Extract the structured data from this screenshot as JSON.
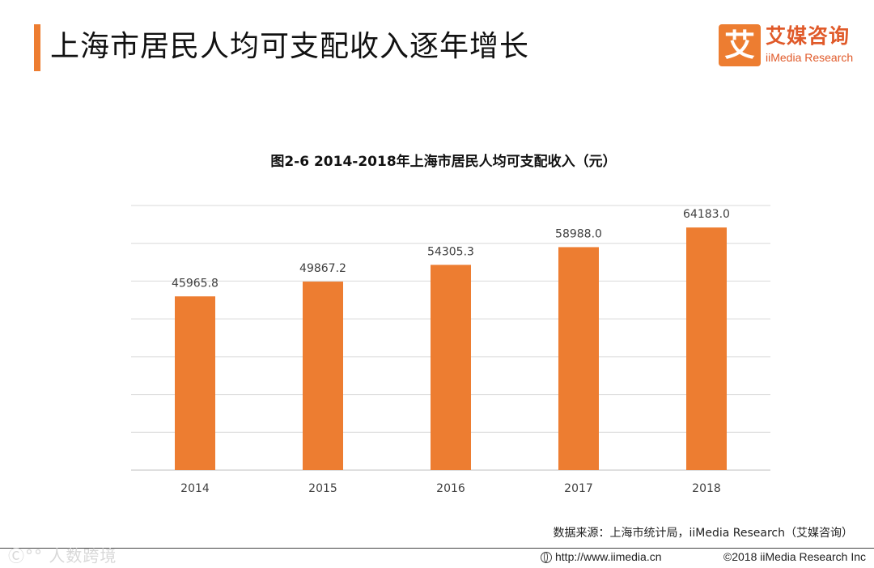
{
  "header": {
    "title": "上海市居民人均可支配收入逐年增长",
    "accent_color": "#ED7D31"
  },
  "logo": {
    "mark": "艾",
    "name_cn": "艾媒咨询",
    "name_en": "iiMedia Research"
  },
  "chart_data": {
    "type": "bar",
    "title": "图2-6 2014-2018年上海市居民人均可支配收入（元）",
    "categories": [
      "2014",
      "2015",
      "2016",
      "2017",
      "2018"
    ],
    "values": [
      45965.8,
      49867.2,
      54305.3,
      58988.0,
      64183.0
    ],
    "value_labels": [
      "45965.8",
      "49867.2",
      "54305.3",
      "58988.0",
      "64183.0"
    ],
    "ylim": [
      0,
      70000
    ],
    "y_gridline_step": 10000,
    "y_ticks_visible": false,
    "grid": true,
    "bar_color": "#ED7D31",
    "xlabel": "",
    "ylabel": ""
  },
  "source": "数据来源：上海市统计局，iiMedia Research（艾媒咨询）",
  "footer": {
    "watermark": "Ⓒ°° 人数跨境",
    "url": "http://www.iimedia.cn",
    "copyright": "©2018  iiMedia Research  Inc"
  }
}
